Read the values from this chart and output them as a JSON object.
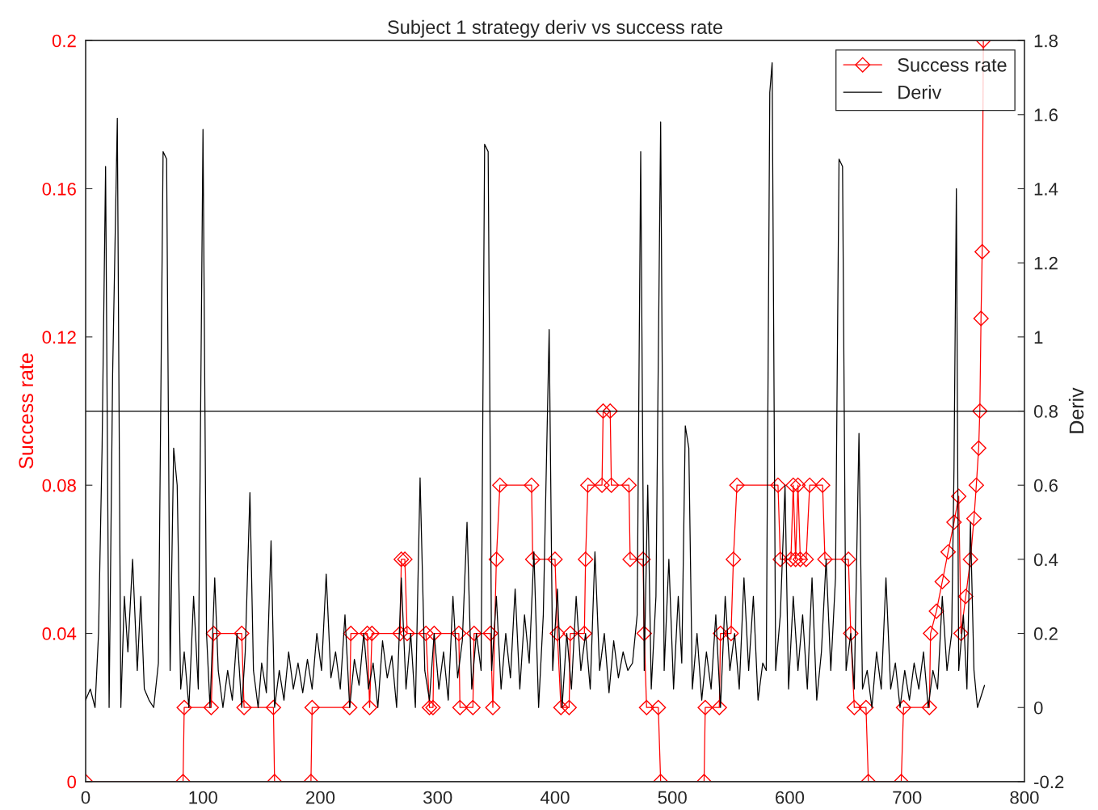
{
  "chart_data": {
    "type": "line",
    "title": "Subject 1 strategy deriv vs success rate",
    "ylabel": "Success rate",
    "y2label": "Deriv",
    "xlim": [
      0,
      800
    ],
    "xticks": [
      0,
      100,
      200,
      300,
      400,
      500,
      600,
      700,
      800
    ],
    "ylim": [
      0,
      0.2
    ],
    "yticks": [
      0,
      0.04,
      0.08,
      0.12,
      0.16,
      0.2
    ],
    "y2lim": [
      -0.2,
      1.8
    ],
    "y2ticks": [
      -0.2,
      0,
      0.2,
      0.4,
      0.6,
      0.8,
      1,
      1.2,
      1.4,
      1.6,
      1.8
    ],
    "grid": false,
    "legend": "top right",
    "ref_lines": [
      {
        "axis": "y2",
        "value": 0.8,
        "color": "#000000"
      }
    ],
    "series": [
      {
        "name": "Success rate",
        "color": "#ff0000",
        "marker": "diamond",
        "x": [
          0,
          83,
          84,
          107,
          109,
          133,
          135,
          160,
          161,
          192,
          193,
          225,
          226,
          240,
          242,
          244,
          268,
          269,
          272,
          274,
          290,
          293,
          296,
          297,
          318,
          319,
          330,
          331,
          345,
          347,
          350,
          353,
          380,
          381,
          400,
          402,
          405,
          412,
          413,
          425,
          426,
          428,
          440,
          441,
          447,
          448,
          463,
          464,
          475,
          476,
          478,
          488,
          490,
          527,
          528,
          540,
          541,
          550,
          552,
          555,
          590,
          592,
          601,
          603,
          605,
          607,
          609,
          614,
          617,
          628,
          630,
          650,
          652,
          655,
          665,
          667,
          695,
          697,
          719,
          720,
          725,
          730,
          735,
          740,
          744,
          746,
          750,
          754,
          757,
          759,
          761,
          762,
          763,
          764,
          765
        ],
        "values": [
          0,
          0,
          0.02,
          0.02,
          0.04,
          0.04,
          0.02,
          0.02,
          0,
          0,
          0.02,
          0.02,
          0.04,
          0.04,
          0.02,
          0.04,
          0.04,
          0.06,
          0.06,
          0.04,
          0.04,
          0.02,
          0.02,
          0.04,
          0.04,
          0.02,
          0.02,
          0.04,
          0.04,
          0.02,
          0.06,
          0.08,
          0.08,
          0.06,
          0.06,
          0.04,
          0.02,
          0.02,
          0.04,
          0.04,
          0.06,
          0.08,
          0.08,
          0.1,
          0.1,
          0.08,
          0.08,
          0.06,
          0.06,
          0.04,
          0.02,
          0.02,
          0,
          0,
          0.02,
          0.02,
          0.04,
          0.04,
          0.06,
          0.08,
          0.08,
          0.06,
          0.06,
          0.08,
          0.06,
          0.08,
          0.06,
          0.06,
          0.08,
          0.08,
          0.06,
          0.06,
          0.04,
          0.02,
          0.02,
          0,
          0,
          0.02,
          0.02,
          0.04,
          0.046,
          0.054,
          0.062,
          0.07,
          0.077,
          0.04,
          0.05,
          0.06,
          0.071,
          0.08,
          0.09,
          0.1,
          0.125,
          0.143,
          0.2
        ]
      },
      {
        "name": "Deriv",
        "color": "#000000",
        "axis": "y2",
        "marker": "none",
        "x": [
          0,
          4,
          8,
          11,
          14,
          17,
          20,
          23,
          27,
          30,
          33,
          36,
          40,
          44,
          47,
          50,
          54,
          58,
          62,
          66,
          69,
          72,
          75,
          78,
          81,
          84,
          88,
          92,
          96,
          100,
          103,
          106,
          110,
          113,
          117,
          121,
          125,
          129,
          133,
          136,
          140,
          143,
          147,
          150,
          154,
          158,
          161,
          165,
          169,
          173,
          177,
          181,
          185,
          189,
          193,
          197,
          201,
          205,
          209,
          213,
          217,
          221,
          225,
          229,
          233,
          237,
          241,
          245,
          249,
          253,
          257,
          261,
          265,
          269,
          273,
          277,
          281,
          285,
          289,
          293,
          297,
          301,
          305,
          309,
          313,
          317,
          321,
          325,
          329,
          333,
          337,
          340,
          343,
          346,
          350,
          354,
          358,
          362,
          366,
          370,
          374,
          378,
          382,
          386,
          390,
          395,
          398,
          402,
          406,
          410,
          414,
          418,
          422,
          426,
          430,
          434,
          438,
          442,
          446,
          450,
          454,
          458,
          462,
          466,
          470,
          473,
          476,
          479,
          482,
          486,
          490,
          493,
          497,
          501,
          505,
          508,
          511,
          514,
          517,
          521,
          525,
          529,
          533,
          537,
          541,
          545,
          549,
          553,
          557,
          561,
          565,
          569,
          573,
          577,
          580,
          583,
          585,
          588,
          592,
          596,
          599,
          603,
          607,
          611,
          615,
          619,
          623,
          627,
          631,
          635,
          639,
          642,
          645,
          648,
          652,
          655,
          659,
          662,
          666,
          670,
          674,
          678,
          682,
          686,
          690,
          694,
          698,
          702,
          706,
          710,
          714,
          718,
          722,
          726,
          730,
          734,
          738,
          740,
          742,
          744,
          748,
          751,
          754,
          757,
          760,
          763,
          766
        ],
        "values": [
          0.02,
          0.05,
          0.0,
          0.2,
          0.7,
          1.46,
          0.0,
          0.9,
          1.59,
          0.0,
          0.3,
          0.15,
          0.4,
          0.1,
          0.3,
          0.05,
          0.02,
          0.0,
          0.12,
          1.5,
          1.48,
          0.1,
          0.7,
          0.6,
          0.05,
          0.15,
          0.0,
          0.3,
          0.05,
          1.56,
          0.2,
          0.0,
          0.35,
          0.1,
          0.0,
          0.1,
          0.02,
          0.2,
          0.0,
          0.15,
          0.58,
          0.1,
          0.0,
          0.12,
          0.04,
          0.45,
          0.0,
          0.1,
          0.02,
          0.15,
          0.05,
          0.12,
          0.04,
          0.13,
          0.05,
          0.2,
          0.1,
          0.36,
          0.08,
          0.15,
          0.05,
          0.25,
          0.0,
          0.13,
          0.06,
          0.2,
          0.05,
          0.12,
          0.0,
          0.18,
          0.08,
          0.14,
          0.0,
          0.35,
          0.05,
          0.2,
          0.0,
          0.62,
          0.1,
          0.02,
          0.2,
          0.05,
          0.15,
          0.02,
          0.3,
          0.08,
          0.18,
          0.5,
          0.05,
          0.2,
          0.1,
          1.52,
          1.5,
          0.1,
          0.3,
          0.05,
          0.2,
          0.08,
          0.32,
          0.05,
          0.25,
          0.12,
          0.42,
          0.0,
          0.25,
          1.02,
          0.1,
          0.32,
          0.0,
          0.2,
          0.05,
          0.3,
          0.1,
          0.2,
          0.05,
          0.42,
          0.1,
          0.2,
          0.04,
          0.18,
          0.08,
          0.15,
          0.1,
          0.12,
          0.25,
          1.5,
          0.1,
          0.6,
          0.05,
          0.3,
          1.58,
          0.1,
          0.4,
          0.05,
          0.3,
          0.12,
          0.76,
          0.7,
          0.05,
          0.2,
          0.02,
          0.15,
          0.05,
          0.25,
          0.0,
          0.3,
          0.1,
          0.2,
          0.05,
          0.35,
          0.1,
          0.3,
          0.02,
          0.12,
          0.1,
          1.66,
          1.74,
          0.1,
          0.25,
          0.6,
          0.05,
          0.3,
          0.1,
          0.25,
          0.05,
          0.35,
          0.02,
          0.15,
          0.4,
          0.1,
          0.35,
          1.48,
          1.46,
          0.1,
          0.2,
          0.05,
          0.74,
          0.05,
          0.1,
          0.0,
          0.15,
          0.05,
          0.35,
          0.05,
          0.12,
          0.0,
          0.1,
          0.02,
          0.12,
          0.05,
          0.15,
          0.0,
          0.1,
          0.05,
          0.3,
          0.1,
          0.2,
          0.65,
          1.4,
          0.1,
          0.25,
          0.05,
          0.5,
          0.1,
          0.0,
          0.03,
          0.06
        ]
      }
    ]
  }
}
